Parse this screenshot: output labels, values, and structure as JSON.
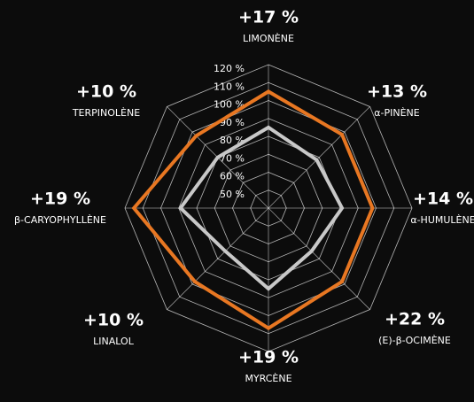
{
  "chart_data": {
    "type": "radar",
    "categories": [
      "LIMONÈNE",
      "α-PINÈNE",
      "α-HUMULÈNE",
      "(E)-β-OCIMÈNE",
      "MYRCÈNE",
      "LINALOL",
      "β-CARYOPHYLLÈNE",
      "TERPINOLÈNE"
    ],
    "changes": [
      "+17 %",
      "+13 %",
      "+14 %",
      "+22 %",
      "+19 %",
      "+10 %",
      "+19 %",
      "+10 %"
    ],
    "rlim": [
      40,
      120
    ],
    "rticks": [
      {
        "value": 50,
        "label": "50 %"
      },
      {
        "value": 60,
        "label": "60 %"
      },
      {
        "value": 70,
        "label": "70 %"
      },
      {
        "value": 80,
        "label": "80 %"
      },
      {
        "value": 90,
        "label": "90 %"
      },
      {
        "value": 100,
        "label": "100 %"
      },
      {
        "value": 110,
        "label": "110 %"
      },
      {
        "value": 120,
        "label": "120 %"
      }
    ],
    "series": [
      {
        "color": "#c8c8c8",
        "values": [
          85,
          78,
          81,
          74,
          85,
          74,
          89,
          80
        ]
      },
      {
        "color": "#e87722",
        "values": [
          105,
          98,
          98,
          98,
          107,
          98,
          115,
          97
        ]
      }
    ]
  }
}
